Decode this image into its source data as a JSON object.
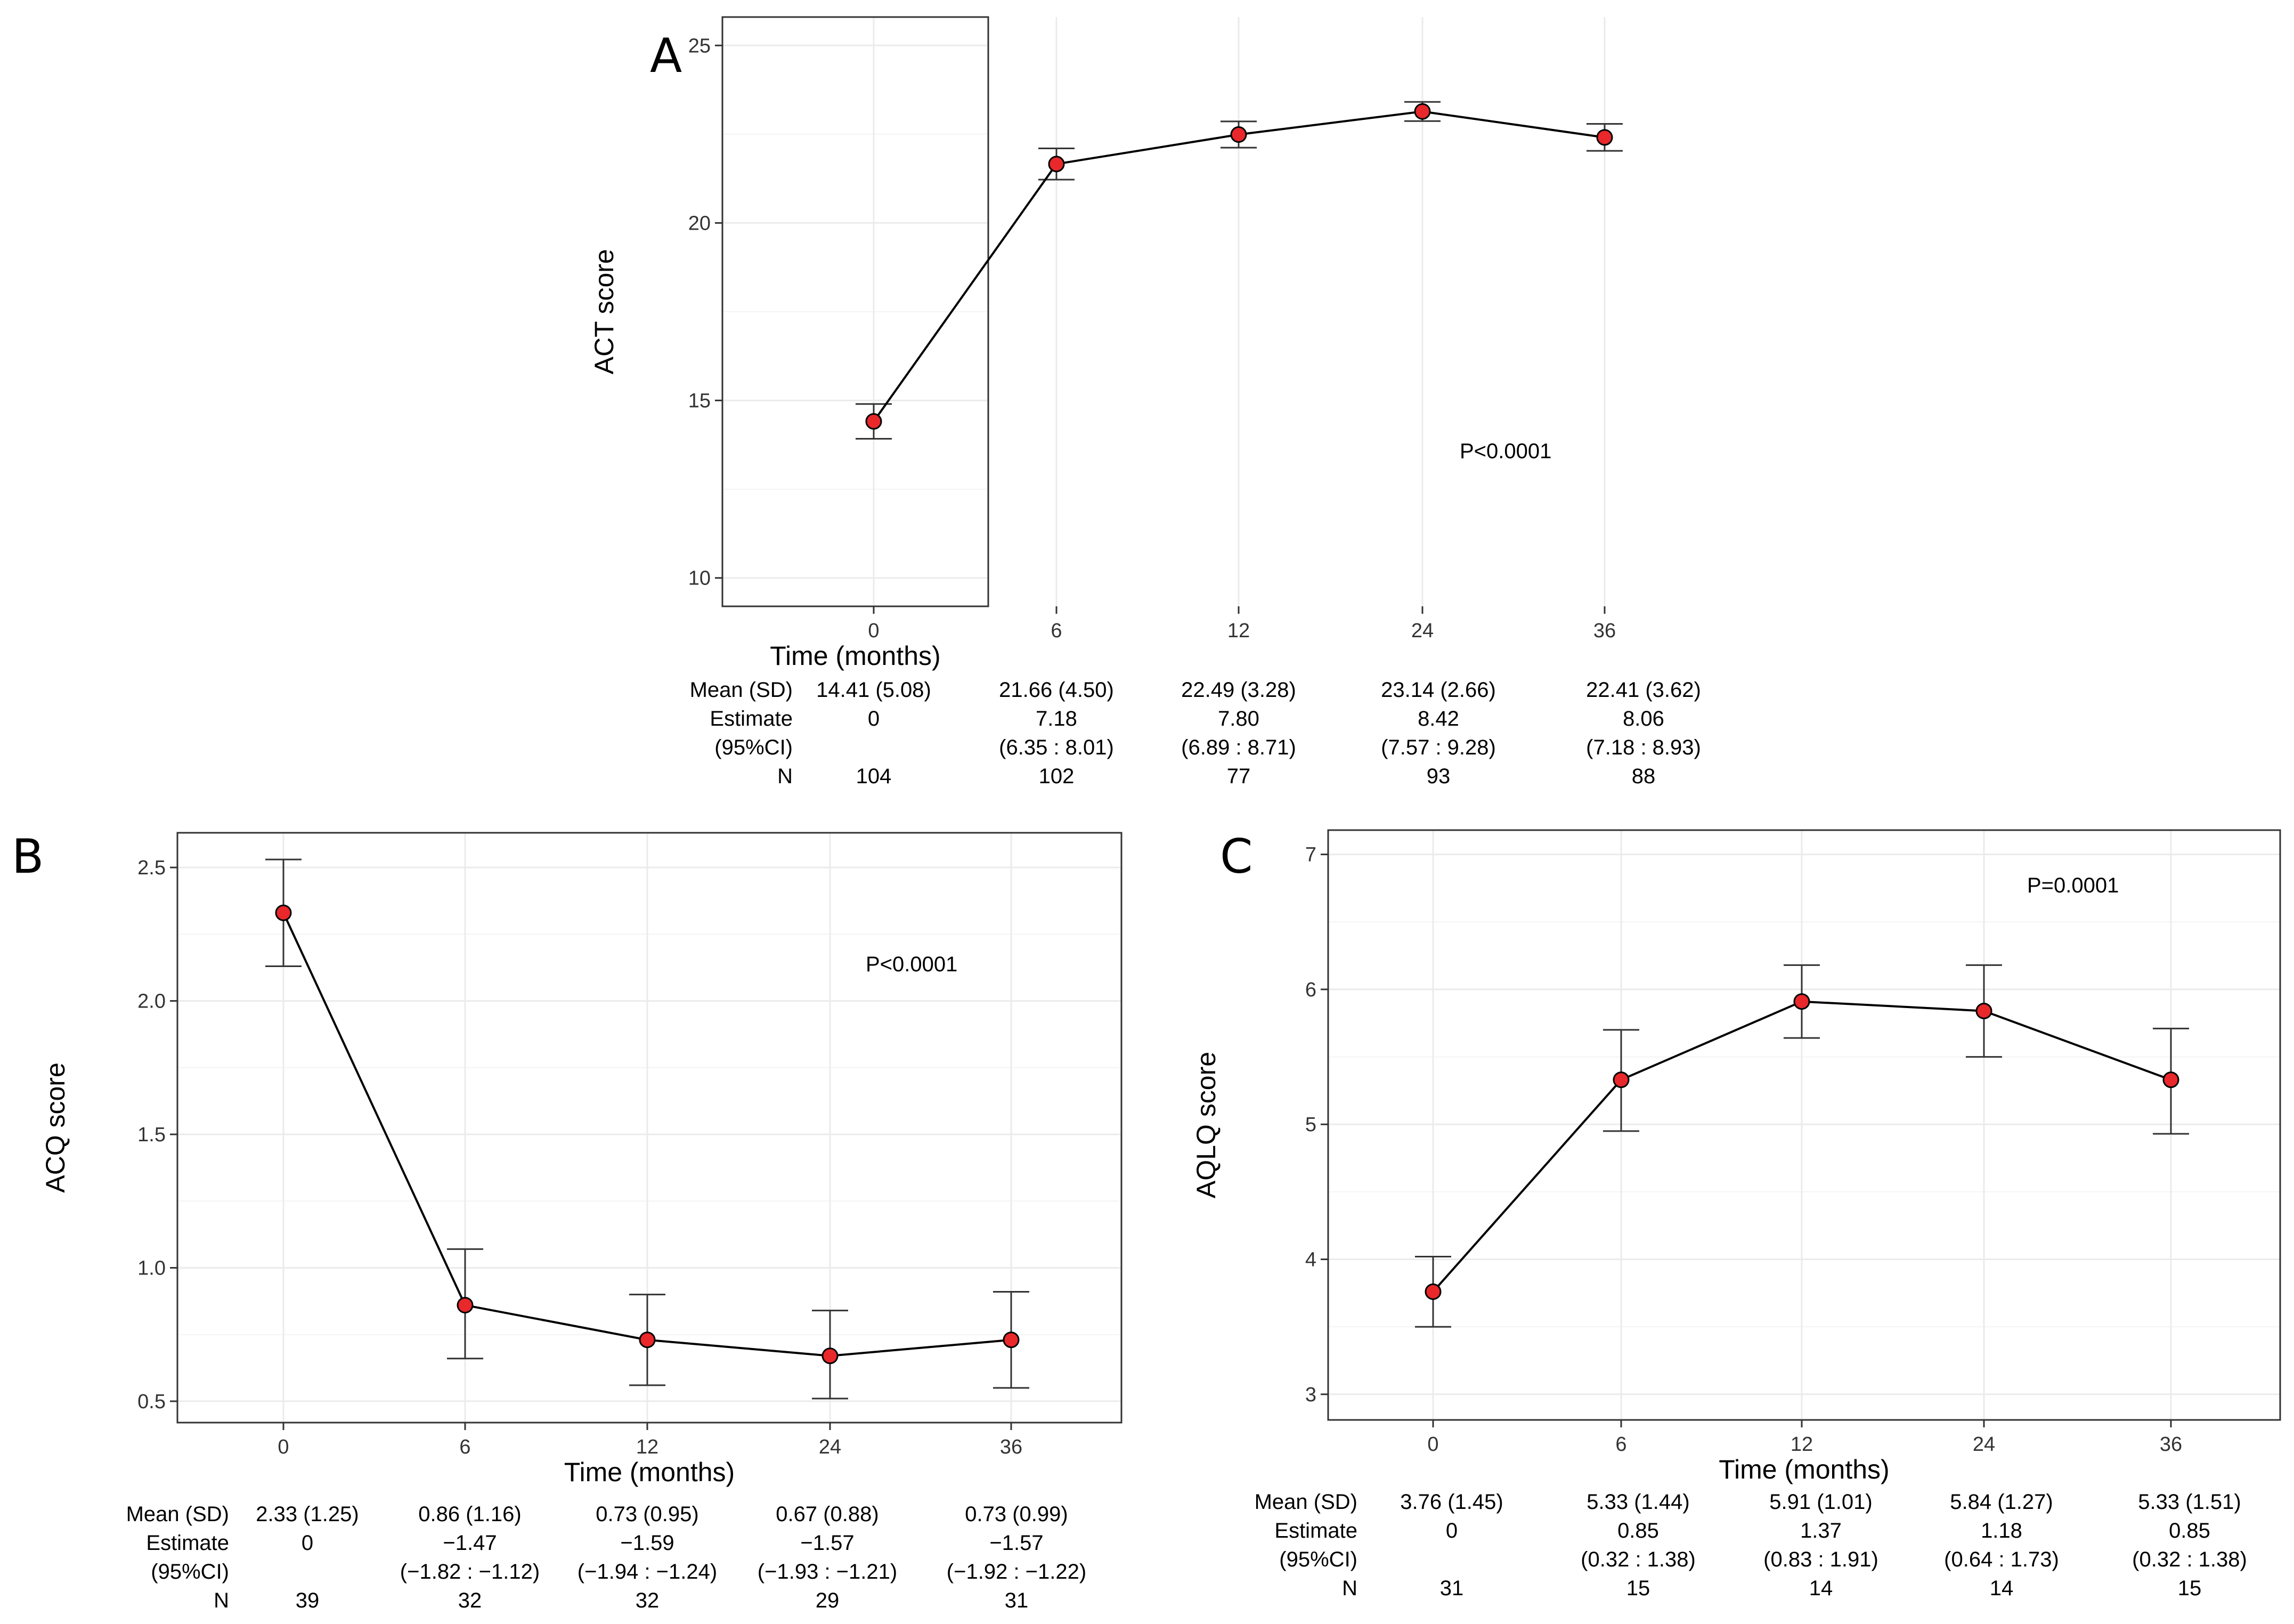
{
  "chart_data": [
    {
      "panel": "A",
      "type": "line",
      "x": [
        "0",
        "6",
        "12",
        "24",
        "36"
      ],
      "means": [
        14.41,
        21.66,
        22.49,
        23.14,
        22.41
      ],
      "ci_lower": [
        13.92,
        21.22,
        22.12,
        22.87,
        22.03
      ],
      "ci_upper": [
        14.9,
        22.1,
        22.86,
        23.41,
        22.79
      ],
      "ylabel": "ACT score",
      "xlabel": "Time (months)",
      "ylim": [
        9.2,
        25.8
      ],
      "yticks": [
        "10",
        "15",
        "20",
        "25"
      ],
      "p_value": "P<0.0001",
      "table": {
        "row_labels": [
          "Mean (SD)",
          "Estimate",
          "(95%CI)",
          "N"
        ],
        "mean_sd": [
          "14.41 (5.08)",
          "21.66 (4.50)",
          "22.49 (3.28)",
          "23.14 (2.66)",
          "22.41 (3.62)"
        ],
        "estimate": [
          "0",
          "7.18",
          "7.80",
          "8.42",
          "8.06"
        ],
        "ci": [
          "",
          "(6.35 : 8.01)",
          "(6.89 : 8.71)",
          "(7.57 : 9.28)",
          "(7.18 : 8.93)"
        ],
        "n": [
          "104",
          "102",
          "77",
          "93",
          "88"
        ]
      }
    },
    {
      "panel": "B",
      "type": "line",
      "x": [
        "0",
        "6",
        "12",
        "24",
        "36"
      ],
      "means": [
        2.33,
        0.86,
        0.73,
        0.67,
        0.73
      ],
      "ci_lower": [
        2.13,
        0.66,
        0.56,
        0.51,
        0.55
      ],
      "ci_upper": [
        2.53,
        1.07,
        0.9,
        0.84,
        0.91
      ],
      "ylabel": "ACQ score",
      "xlabel": "Time (months)",
      "ylim": [
        0.42,
        2.63
      ],
      "yticks": [
        "0.5",
        "1.0",
        "1.5",
        "2.0",
        "2.5"
      ],
      "p_value": "P<0.0001",
      "table": {
        "row_labels": [
          "Mean (SD)",
          "Estimate",
          "(95%CI)",
          "N"
        ],
        "mean_sd": [
          "2.33 (1.25)",
          "0.86 (1.16)",
          "0.73 (0.95)",
          "0.67 (0.88)",
          "0.73 (0.99)"
        ],
        "estimate": [
          "0",
          "−1.47",
          "−1.59",
          "−1.57",
          "−1.57"
        ],
        "ci": [
          "",
          "(−1.82 : −1.12)",
          "(−1.94 : −1.24)",
          "(−1.93 : −1.21)",
          "(−1.92 : −1.22)"
        ],
        "n": [
          "39",
          "32",
          "32",
          "29",
          "31"
        ]
      }
    },
    {
      "panel": "C",
      "type": "line",
      "x": [
        "0",
        "6",
        "12",
        "24",
        "36"
      ],
      "means": [
        3.76,
        5.33,
        5.91,
        5.84,
        5.33
      ],
      "ci_lower": [
        3.5,
        4.95,
        5.64,
        5.5,
        4.93
      ],
      "ci_upper": [
        4.02,
        5.7,
        6.18,
        6.18,
        5.71
      ],
      "ylabel": "AQLQ score",
      "xlabel": "Time (months)",
      "ylim": [
        2.81,
        7.18
      ],
      "yticks": [
        "3",
        "4",
        "5",
        "6",
        "7"
      ],
      "p_value": "P=0.0001",
      "table": {
        "row_labels": [
          "Mean (SD)",
          "Estimate",
          "(95%CI)",
          "N"
        ],
        "mean_sd": [
          "3.76 (1.45)",
          "5.33 (1.44)",
          "5.91 (1.01)",
          "5.84 (1.27)",
          "5.33 (1.51)"
        ],
        "estimate": [
          "0",
          "0.85",
          "1.37",
          "1.18",
          "0.85"
        ],
        "ci": [
          "",
          "(0.32 : 1.38)",
          "(0.83 : 1.91)",
          "(0.64 : 1.73)",
          "(0.32 : 1.38)"
        ],
        "n": [
          "31",
          "15",
          "14",
          "14",
          "15"
        ]
      }
    }
  ],
  "colors": {
    "point_fill": "#e8282b",
    "line": "#000000",
    "errorbar": "#333333",
    "gridline": "#ebebeb",
    "panel_border": "#333333"
  }
}
